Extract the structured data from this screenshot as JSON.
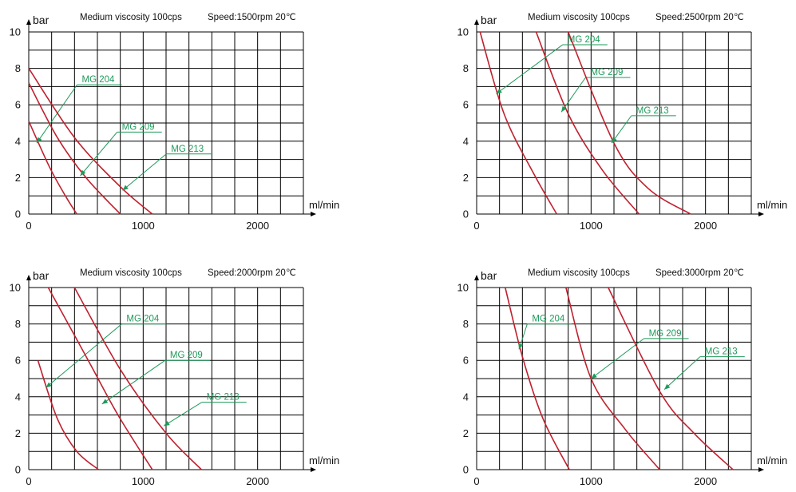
{
  "colors": {
    "curve": "#c0202e",
    "annotation": "#1e9a5a",
    "grid": "#000000",
    "text": "#111111"
  },
  "chart_data": [
    {
      "type": "line",
      "title": "Medium viscosity 100cps",
      "speed_label": "Speed:1500rpm 20℃",
      "xlabel": "ml/min",
      "ylabel": "bar",
      "xlim": [
        0,
        2400
      ],
      "ylim": [
        0,
        10
      ],
      "x_ticks": [
        0,
        1000,
        2000
      ],
      "y_ticks": [
        0,
        2,
        4,
        6,
        8,
        10
      ],
      "grid": true,
      "series": [
        {
          "name": "MG 204",
          "points": [
            [
              0,
              5.1
            ],
            [
              180,
              2.6
            ],
            [
              320,
              1.0
            ],
            [
              420,
              0
            ]
          ],
          "label_pos": [
            450,
            7.1
          ],
          "arrow_to": [
            70,
            3.9
          ]
        },
        {
          "name": "MG 209",
          "points": [
            [
              0,
              7.2
            ],
            [
              250,
              4.2
            ],
            [
              500,
              2.0
            ],
            [
              800,
              0
            ]
          ],
          "label_pos": [
            800,
            4.5
          ],
          "arrow_to": [
            450,
            2.1
          ]
        },
        {
          "name": "MG 213",
          "points": [
            [
              0,
              8.0
            ],
            [
              400,
              4.2
            ],
            [
              800,
              1.5
            ],
            [
              1080,
              0
            ]
          ],
          "label_pos": [
            1230,
            3.3
          ],
          "arrow_to": [
            820,
            1.3
          ]
        }
      ]
    },
    {
      "type": "line",
      "title": "Medium viscosity 100cps",
      "speed_label": "Speed:2500rpm 20℃",
      "xlabel": "ml/min",
      "ylabel": "bar",
      "xlim": [
        0,
        2400
      ],
      "ylim": [
        0,
        10
      ],
      "x_ticks": [
        0,
        1000,
        2000
      ],
      "y_ticks": [
        0,
        2,
        4,
        6,
        8,
        10
      ],
      "grid": true,
      "series": [
        {
          "name": "MG 204",
          "points": [
            [
              30,
              10.0
            ],
            [
              240,
              5.5
            ],
            [
              500,
              2.2
            ],
            [
              700,
              0
            ]
          ],
          "label_pos": [
            780,
            9.3
          ],
          "arrow_to": [
            170,
            6.6
          ]
        },
        {
          "name": "MG 209",
          "points": [
            [
              520,
              10.0
            ],
            [
              800,
              5.5
            ],
            [
              1100,
              2.4
            ],
            [
              1420,
              0
            ]
          ],
          "label_pos": [
            980,
            7.5
          ],
          "arrow_to": [
            740,
            5.6
          ]
        },
        {
          "name": "MG 213",
          "points": [
            [
              800,
              10.0
            ],
            [
              1200,
              3.9
            ],
            [
              1500,
              1.4
            ],
            [
              1870,
              0
            ]
          ],
          "label_pos": [
            1380,
            5.4
          ],
          "arrow_to": [
            1180,
            3.9
          ]
        }
      ]
    },
    {
      "type": "line",
      "title": "Medium viscosity 100cps",
      "speed_label": "Speed:2000rpm 20℃",
      "xlabel": "ml/min",
      "ylabel": "bar",
      "xlim": [
        0,
        2400
      ],
      "ylim": [
        0,
        10
      ],
      "x_ticks": [
        0,
        1000,
        2000
      ],
      "y_ticks": [
        0,
        2,
        4,
        6,
        8,
        10
      ],
      "grid": true,
      "series": [
        {
          "name": "MG 204",
          "points": [
            [
              80,
              6.0
            ],
            [
              250,
              2.8
            ],
            [
              420,
              1.0
            ],
            [
              610,
              0
            ]
          ],
          "label_pos": [
            840,
            8.0
          ],
          "arrow_to": [
            150,
            4.5
          ]
        },
        {
          "name": "MG 209",
          "points": [
            [
              170,
              10.0
            ],
            [
              520,
              6.0
            ],
            [
              780,
              3.0
            ],
            [
              1080,
              0
            ]
          ],
          "label_pos": [
            1220,
            6.0
          ],
          "arrow_to": [
            640,
            3.6
          ]
        },
        {
          "name": "MG 213",
          "points": [
            [
              400,
              10.0
            ],
            [
              800,
              5.5
            ],
            [
              1200,
              2.0
            ],
            [
              1510,
              0
            ]
          ],
          "label_pos": [
            1540,
            3.7
          ],
          "arrow_to": [
            1180,
            2.4
          ]
        }
      ]
    },
    {
      "type": "line",
      "title": "Medium viscosity 100cps",
      "speed_label": "Speed:3000rpm 20℃",
      "xlabel": "ml/min",
      "ylabel": "bar",
      "xlim": [
        0,
        2400
      ],
      "ylim": [
        0,
        10
      ],
      "x_ticks": [
        0,
        1000,
        2000
      ],
      "y_ticks": [
        0,
        2,
        4,
        6,
        8,
        10
      ],
      "grid": true,
      "series": [
        {
          "name": "MG 204",
          "points": [
            [
              250,
              10.0
            ],
            [
              400,
              6.2
            ],
            [
              580,
              2.8
            ],
            [
              810,
              0
            ]
          ],
          "label_pos": [
            470,
            8.0
          ],
          "arrow_to": [
            370,
            6.6
          ]
        },
        {
          "name": "MG 209",
          "points": [
            [
              780,
              10.0
            ],
            [
              1000,
              5.0
            ],
            [
              1300,
              2.2
            ],
            [
              1600,
              0
            ]
          ],
          "label_pos": [
            1490,
            7.2
          ],
          "arrow_to": [
            1000,
            5.0
          ]
        },
        {
          "name": "MG 213",
          "points": [
            [
              1150,
              10.0
            ],
            [
              1600,
              4.3
            ],
            [
              1900,
              2.0
            ],
            [
              2240,
              0
            ]
          ],
          "label_pos": [
            1980,
            6.2
          ],
          "arrow_to": [
            1640,
            4.4
          ]
        }
      ]
    }
  ]
}
